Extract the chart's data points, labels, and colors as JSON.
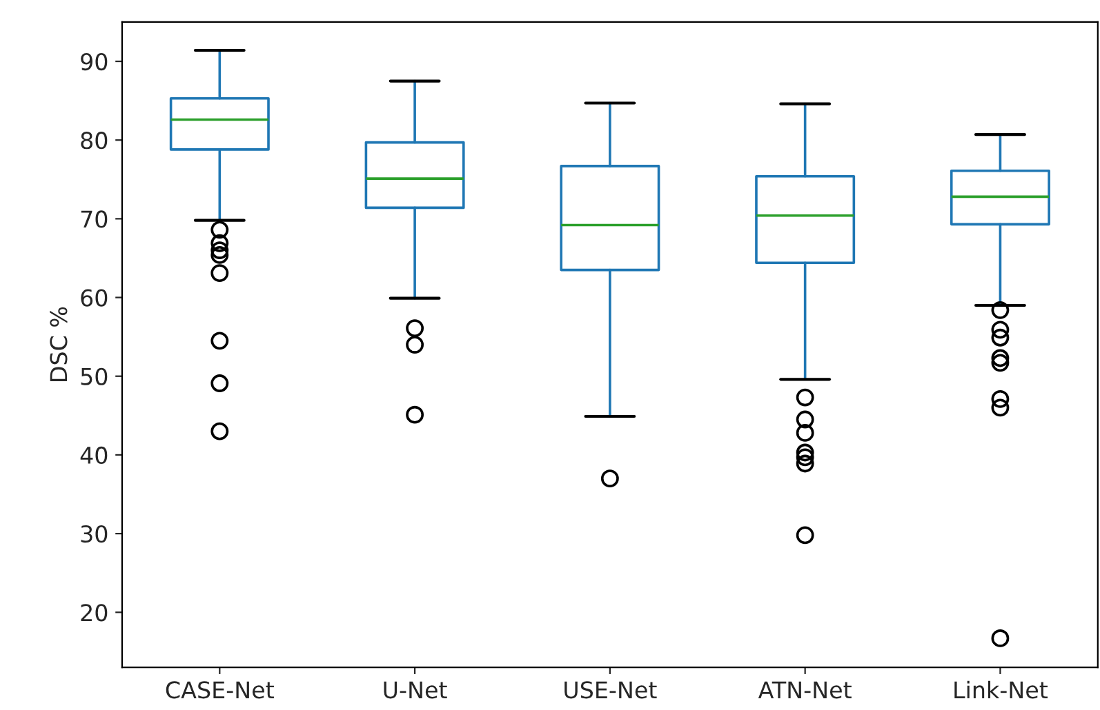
{
  "chart_data": {
    "type": "box",
    "ylabel": "DSC %",
    "categories": [
      "CASE-Net",
      "U-Net",
      "USE-Net",
      "ATN-Net",
      "Link-Net"
    ],
    "boxes": [
      {
        "low": 69.8,
        "q1": 78.8,
        "median": 82.6,
        "q3": 85.3,
        "high": 91.4,
        "outliers": [
          68.6,
          66.9,
          66.0,
          65.4,
          63.1,
          54.5,
          49.1,
          43.0
        ]
      },
      {
        "low": 59.9,
        "q1": 71.4,
        "median": 75.1,
        "q3": 79.7,
        "high": 87.5,
        "outliers": [
          56.1,
          54.0,
          45.1
        ]
      },
      {
        "low": 44.9,
        "q1": 63.5,
        "median": 69.2,
        "q3": 76.7,
        "high": 84.7,
        "outliers": [
          37.0
        ]
      },
      {
        "low": 49.6,
        "q1": 64.4,
        "median": 70.4,
        "q3": 75.4,
        "high": 84.6,
        "outliers": [
          47.3,
          44.5,
          42.8,
          40.3,
          39.7,
          38.9,
          29.8
        ]
      },
      {
        "low": 59.0,
        "q1": 69.3,
        "median": 72.8,
        "q3": 76.1,
        "high": 80.7,
        "outliers": [
          58.4,
          55.9,
          54.9,
          52.3,
          51.7,
          47.1,
          46.0,
          16.7
        ]
      }
    ],
    "color": "#1f77b4",
    "ylim": [
      13,
      95
    ],
    "yticks": [
      20,
      30,
      40,
      50,
      60,
      70,
      80,
      90
    ],
    "grid": false
  }
}
